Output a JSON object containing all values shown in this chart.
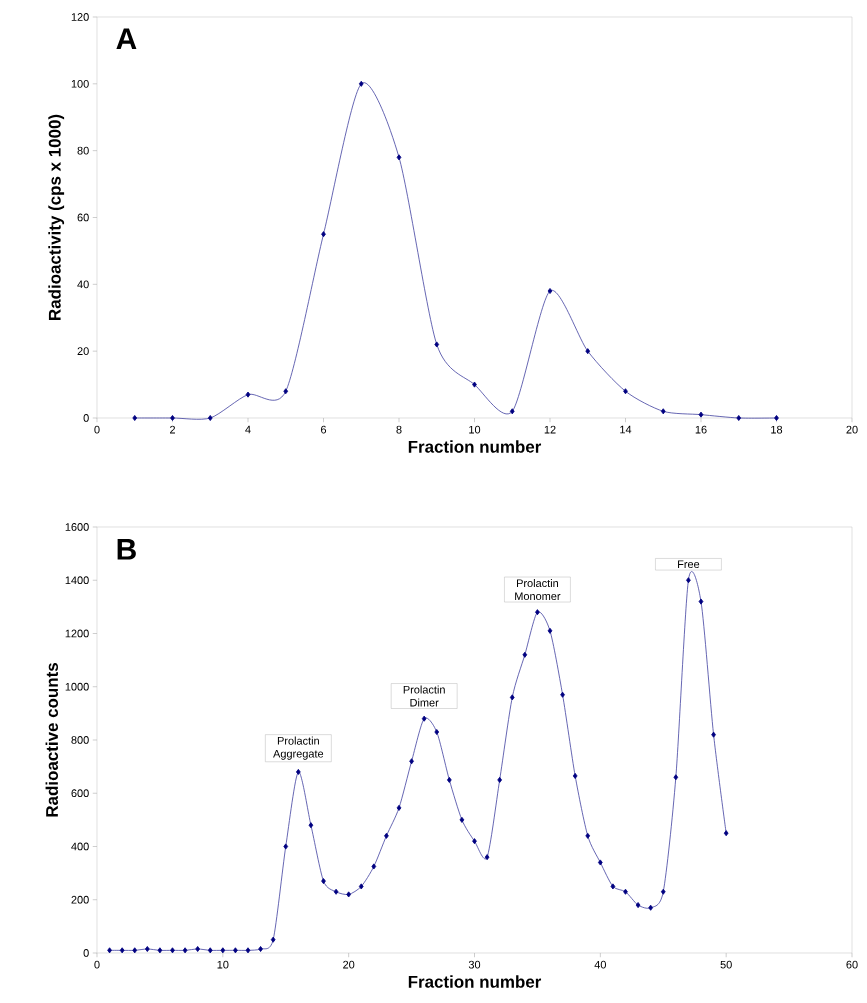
{
  "chart_data": [
    {
      "type": "line",
      "title": "A",
      "xlabel": "Fraction number",
      "ylabel": "Radioactivity (cps x 1000)",
      "marker": "diamond",
      "color": "#000080",
      "x": [
        1,
        2,
        3,
        4,
        5,
        6,
        7,
        8,
        9,
        10,
        11,
        12,
        13,
        14,
        15,
        16,
        17,
        18
      ],
      "values": [
        0,
        0,
        0,
        7,
        8,
        55,
        100,
        78,
        22,
        10,
        2,
        38,
        20,
        8,
        2,
        1,
        0,
        0
      ],
      "xlim": [
        0,
        20
      ],
      "ylim": [
        0,
        120
      ],
      "xticks": [
        0,
        2,
        4,
        6,
        8,
        10,
        12,
        14,
        16,
        18,
        20
      ],
      "yticks": [
        0,
        20,
        40,
        60,
        80,
        100,
        120
      ]
    },
    {
      "type": "line",
      "title": "B",
      "xlabel": "Fraction number",
      "ylabel": "Radioactive counts",
      "marker": "diamond",
      "color": "#000080",
      "x": [
        1,
        2,
        3,
        4,
        5,
        6,
        7,
        8,
        9,
        10,
        11,
        12,
        13,
        14,
        15,
        16,
        17,
        18,
        19,
        20,
        21,
        22,
        23,
        24,
        25,
        26,
        27,
        28,
        29,
        30,
        31,
        32,
        33,
        34,
        35,
        36,
        37,
        38,
        39,
        40,
        41,
        42,
        43,
        44,
        45,
        46,
        47,
        48,
        49,
        50
      ],
      "values": [
        10,
        10,
        10,
        15,
        10,
        10,
        10,
        15,
        10,
        10,
        10,
        10,
        15,
        50,
        400,
        680,
        480,
        270,
        230,
        220,
        250,
        325,
        440,
        545,
        720,
        880,
        830,
        650,
        500,
        420,
        360,
        650,
        960,
        1120,
        1280,
        1210,
        970,
        665,
        440,
        340,
        250,
        230,
        180,
        170,
        230,
        660,
        1400,
        1320,
        820,
        450
      ],
      "xlim": [
        0,
        60
      ],
      "ylim": [
        0,
        1600
      ],
      "xticks": [
        0,
        10,
        20,
        30,
        40,
        50,
        60
      ],
      "yticks": [
        0,
        200,
        400,
        600,
        800,
        1000,
        1200,
        1400,
        1600
      ],
      "annotations": [
        {
          "text": "Prolactin Aggregate",
          "x": 16,
          "y": 680
        },
        {
          "text": "Prolactin Dimer",
          "x": 26,
          "y": 880
        },
        {
          "text": "Prolactin Monomer",
          "x": 35,
          "y": 1280
        },
        {
          "text": "Free",
          "x": 47,
          "y": 1400
        }
      ]
    }
  ]
}
